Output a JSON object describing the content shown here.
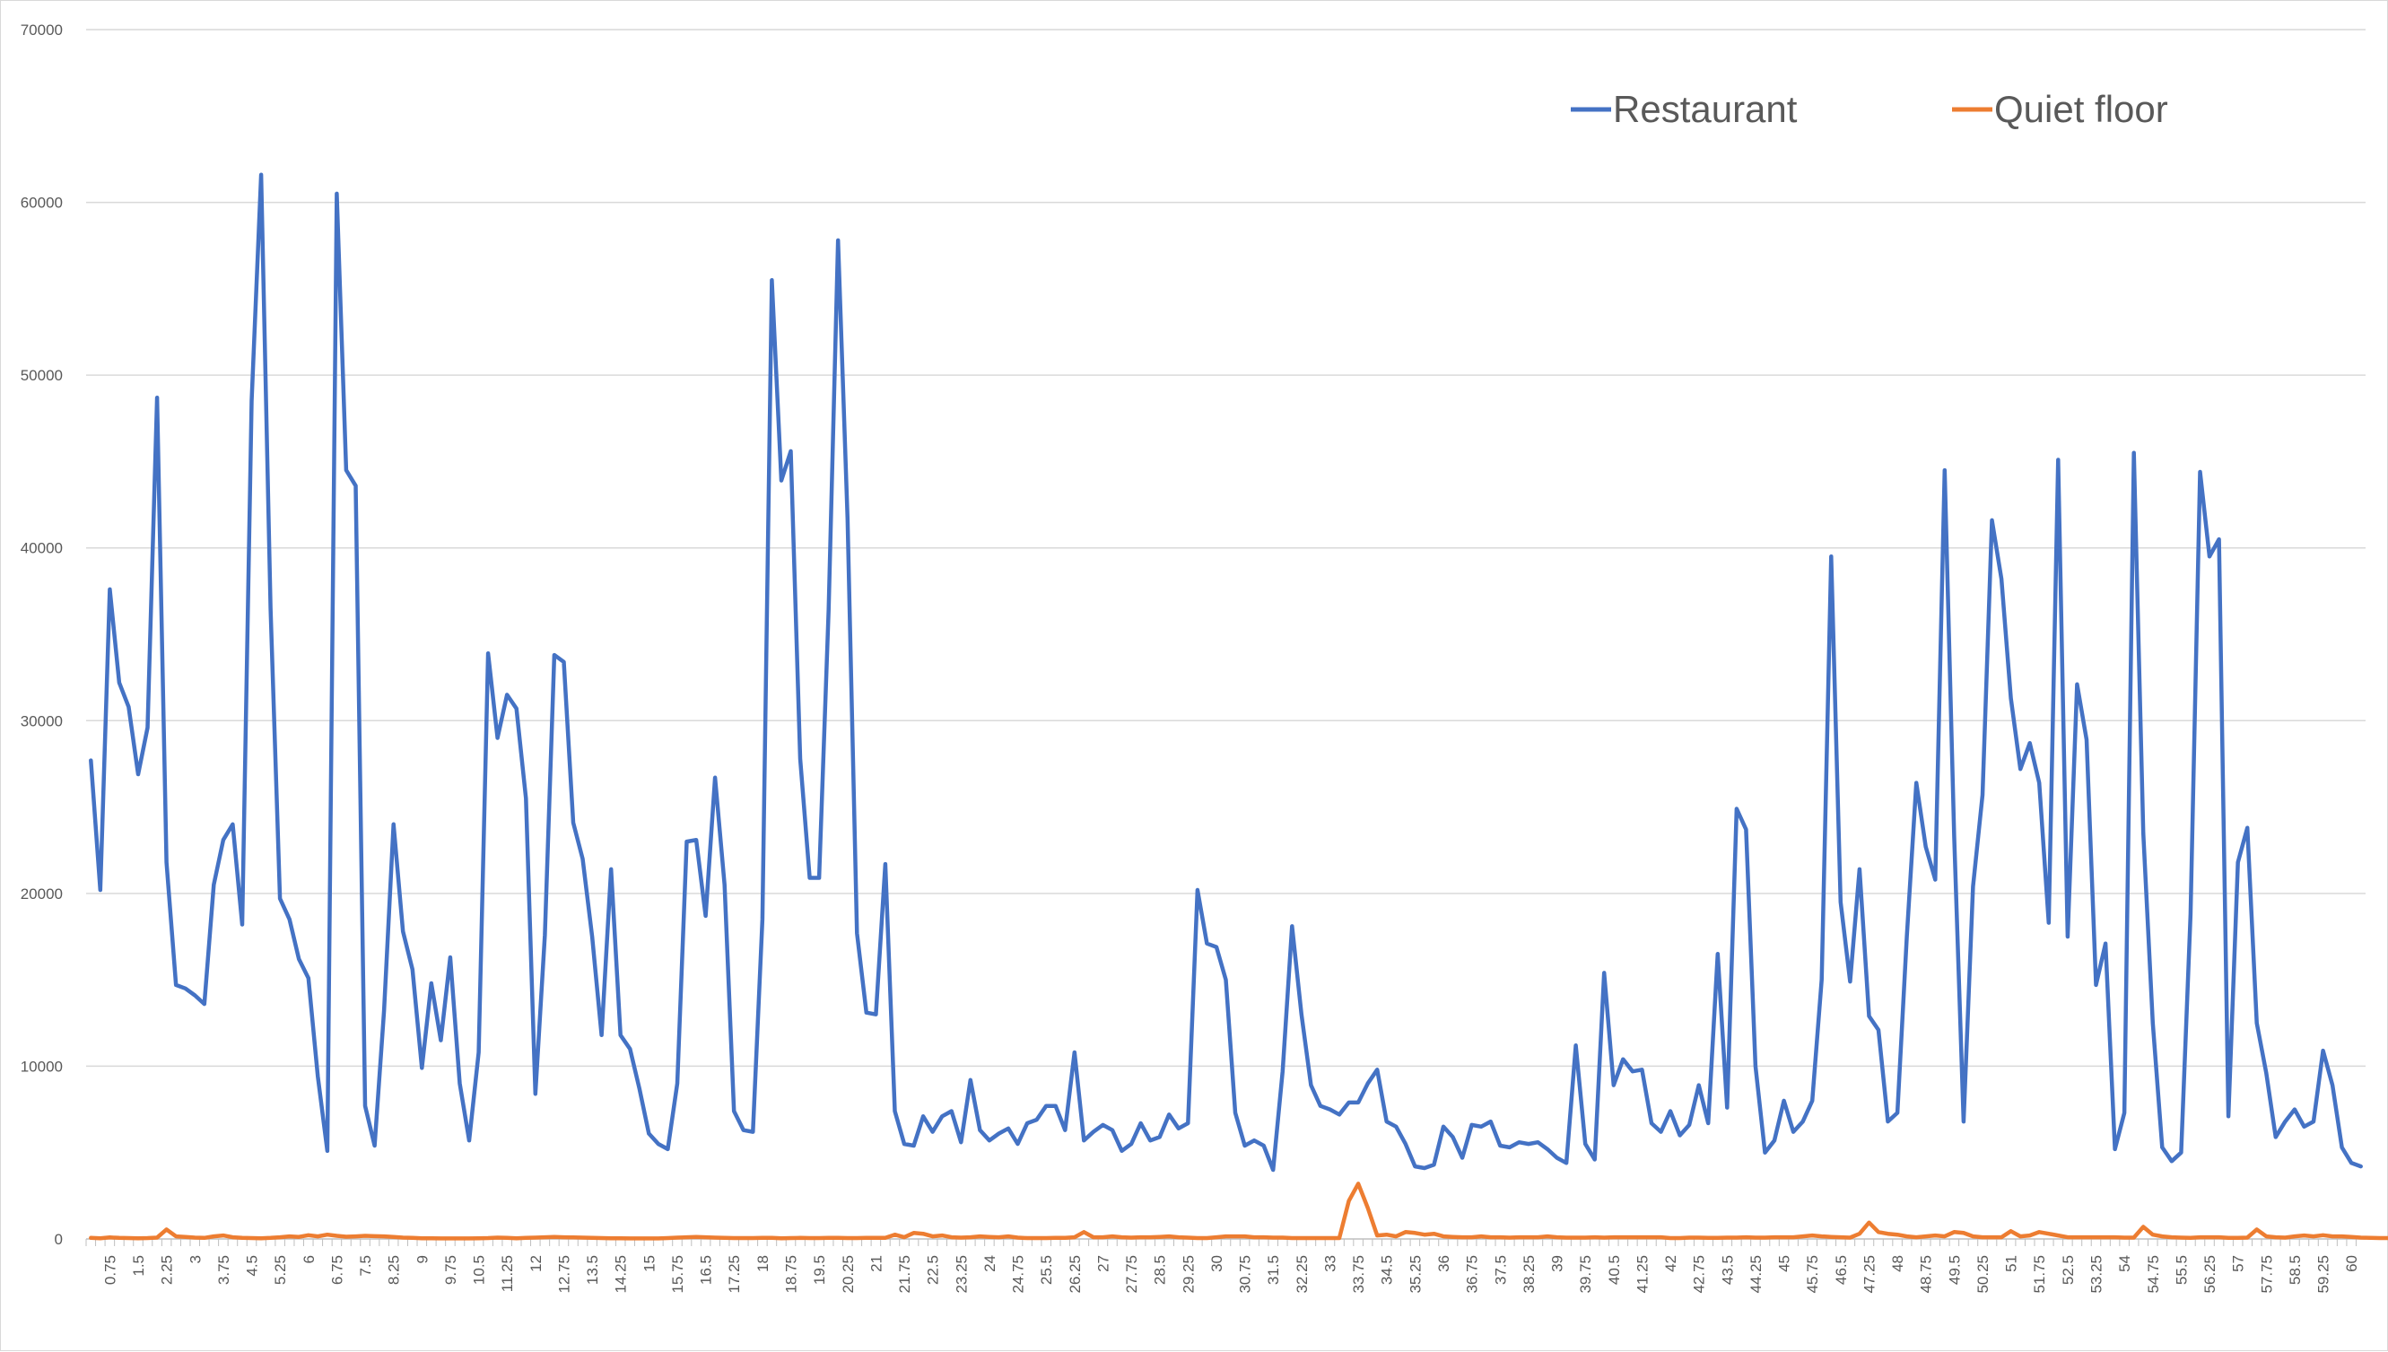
{
  "chart_data": {
    "type": "line",
    "title": "",
    "xlabel": "",
    "ylabel": "",
    "ylim": [
      0,
      70000
    ],
    "yticks": [
      0,
      10000,
      20000,
      30000,
      40000,
      50000,
      60000,
      70000
    ],
    "ytick_labels": [
      "0",
      "10000",
      "20000",
      "30000",
      "40000",
      "50000",
      "60000",
      "70000"
    ],
    "x_step": 0.25,
    "xlim": [
      0.25,
      60
    ],
    "x_label_every": 3,
    "grid": "horizontal",
    "legend": "top-right",
    "series": [
      {
        "name": "Restaurant",
        "color": "#4472C4",
        "values": [
          27700,
          20200,
          37600,
          32200,
          30800,
          26900,
          29600,
          48700,
          21800,
          14700,
          14500,
          14100,
          13600,
          20500,
          23100,
          24000,
          18200,
          48500,
          61600,
          36500,
          19700,
          18500,
          16200,
          15100,
          9400,
          5100,
          60500,
          44500,
          43600,
          7700,
          5400,
          13200,
          24000,
          17800,
          15600,
          9900,
          14800,
          11500,
          16300,
          9000,
          5700,
          10800,
          33900,
          29000,
          31500,
          30700,
          25500,
          8400,
          17600,
          33800,
          33400,
          24100,
          22000,
          17500,
          11800,
          21400,
          11800,
          11000,
          8700,
          6100,
          5500,
          5200,
          9000,
          23000,
          23100,
          18700,
          26700,
          20500,
          7400,
          6300,
          6200,
          18500,
          55500,
          43900,
          45600,
          27800,
          20900,
          20900,
          36400,
          57800,
          41700,
          17700,
          13100,
          13000,
          21700,
          7400,
          5500,
          5400,
          7100,
          6200,
          7100,
          7400,
          5600,
          9200,
          6300,
          5700,
          6100,
          6400,
          5500,
          6700,
          6900,
          7700,
          7700,
          6300,
          10800,
          5700,
          6200,
          6600,
          6300,
          5100,
          5500,
          6700,
          5700,
          5900,
          7200,
          6400,
          6700,
          20200,
          17100,
          16900,
          15000,
          7300,
          5400,
          5700,
          5400,
          4000,
          9700,
          18100,
          13000,
          8900,
          7700,
          7500,
          7200,
          7900,
          7900,
          9000,
          9800,
          6800,
          6500,
          5500,
          4200,
          4100,
          4300,
          6500,
          5900,
          4700,
          6600,
          6500,
          6800,
          5400,
          5300,
          5600,
          5500,
          5600,
          5200,
          4700,
          4400,
          11200,
          5500,
          4600,
          15400,
          8900,
          10400,
          9700,
          9800,
          6700,
          6200,
          7400,
          6000,
          6600,
          8900,
          6700,
          16500,
          7600,
          24900,
          23700,
          10000,
          5000,
          5700,
          8000,
          6200,
          6800,
          8000,
          15000,
          39500,
          19500,
          14900,
          21400,
          12900,
          12100,
          6800,
          7300,
          17500,
          26400,
          22700,
          20800,
          44500,
          23300,
          6800,
          20400,
          25700,
          41600,
          38200,
          31300,
          27200,
          28700,
          26400,
          18300,
          45100,
          17500,
          32100,
          28900,
          14700,
          17100,
          5200,
          7300,
          45500,
          23500,
          12500,
          5300,
          4500,
          5000,
          18800,
          44400,
          39500,
          40500,
          7100,
          21800,
          23800,
          12500,
          9600,
          5900,
          6800,
          7500,
          6500,
          6800,
          10900,
          8900,
          5300,
          4400,
          4200
        ]
      },
      {
        "name": "Quiet floor",
        "color": "#ED7D31",
        "values": [
          60,
          40,
          90,
          60,
          50,
          40,
          50,
          80,
          550,
          150,
          120,
          80,
          60,
          150,
          200,
          100,
          60,
          50,
          40,
          60,
          100,
          150,
          120,
          220,
          150,
          250,
          180,
          130,
          150,
          180,
          160,
          150,
          120,
          80,
          60,
          40,
          40,
          30,
          30,
          30,
          30,
          40,
          50,
          80,
          60,
          40,
          60,
          80,
          100,
          120,
          100,
          90,
          80,
          60,
          50,
          40,
          40,
          30,
          30,
          30,
          30,
          50,
          80,
          100,
          120,
          100,
          80,
          60,
          50,
          50,
          50,
          60,
          60,
          40,
          50,
          60,
          50,
          50,
          60,
          60,
          50,
          50,
          60,
          60,
          70,
          250,
          100,
          350,
          300,
          150,
          200,
          100,
          80,
          100,
          150,
          120,
          100,
          150,
          80,
          50,
          50,
          50,
          60,
          60,
          100,
          400,
          100,
          100,
          150,
          100,
          80,
          100,
          100,
          120,
          150,
          100,
          80,
          50,
          50,
          100,
          150,
          150,
          150,
          100,
          100,
          80,
          80,
          50,
          50,
          50,
          50,
          50,
          50,
          2200,
          3200,
          1800,
          200,
          250,
          150,
          400,
          350,
          250,
          300,
          150,
          120,
          100,
          100,
          150,
          100,
          100,
          80,
          100,
          100,
          100,
          150,
          100,
          80,
          80,
          80,
          100,
          80,
          100,
          100,
          100,
          100,
          100,
          100,
          50,
          50,
          80,
          80,
          60,
          60,
          80,
          80,
          100,
          80,
          80,
          100,
          100,
          100,
          150,
          200,
          150,
          120,
          100,
          80,
          300,
          950,
          400,
          300,
          250,
          150,
          100,
          150,
          200,
          150,
          400,
          350,
          150,
          100,
          100,
          100,
          450,
          150,
          200,
          400,
          300,
          200,
          100,
          100,
          100,
          100,
          100,
          100,
          80,
          80,
          700,
          250,
          150,
          100,
          80,
          60,
          100,
          100,
          100,
          60,
          60,
          80,
          550,
          150,
          100,
          80,
          150,
          200,
          150,
          220,
          150,
          150,
          120,
          80,
          60,
          50,
          50,
          80,
          150,
          100,
          80,
          60,
          60,
          60,
          100,
          60,
          40
        ]
      }
    ]
  }
}
